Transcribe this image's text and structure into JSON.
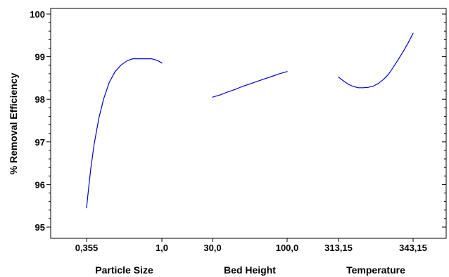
{
  "chart_data": {
    "type": "line",
    "title": "",
    "ylabel": "% Removal Efficiency",
    "ylim": [
      95,
      100
    ],
    "yticks": [
      95,
      96,
      97,
      98,
      99,
      100
    ],
    "ytick_labels": [
      "95",
      "96",
      "97",
      "98",
      "99",
      "100"
    ],
    "grid": false,
    "legend": "none",
    "line_color": "#0000cc",
    "panels": [
      {
        "xlabel": "Particle Size",
        "xlim": [
          0.355,
          1.0
        ],
        "xtick_labels": [
          "0,355",
          "1,0"
        ],
        "series": [
          {
            "x": [
              0.355,
              0.37,
              0.39,
              0.42,
              0.46,
              0.5,
              0.55,
              0.6,
              0.65,
              0.7,
              0.75,
              0.8,
              0.85,
              0.88,
              0.91,
              0.94,
              0.97,
              1.0
            ],
            "y": [
              95.45,
              95.85,
              96.35,
              96.95,
              97.55,
              98.0,
              98.4,
              98.65,
              98.8,
              98.9,
              98.95,
              98.95,
              98.95,
              98.95,
              98.95,
              98.93,
              98.9,
              98.85
            ]
          }
        ]
      },
      {
        "xlabel": "Bed Height",
        "xlim": [
          30.0,
          100.0
        ],
        "xtick_labels": [
          "30,0",
          "100,0"
        ],
        "series": [
          {
            "x": [
              30,
              37,
              44,
              51,
              58,
              65,
              72,
              79,
              86,
              93,
              100
            ],
            "y": [
              98.05,
              98.1,
              98.17,
              98.23,
              98.3,
              98.36,
              98.42,
              98.48,
              98.54,
              98.6,
              98.65
            ]
          }
        ]
      },
      {
        "xlabel": "Temperature",
        "xlim": [
          313.15,
          343.15
        ],
        "xtick_labels": [
          "313,15",
          "343,15"
        ],
        "series": [
          {
            "x": [
              313.15,
              315.15,
              317.15,
              319.15,
              321.15,
              323.15,
              325.15,
              327.15,
              329.15,
              331.15,
              333.15,
              335.15,
              337.15,
              339.15,
              341.15,
              343.15
            ],
            "y": [
              98.52,
              98.43,
              98.35,
              98.3,
              98.27,
              98.27,
              98.28,
              98.31,
              98.37,
              98.46,
              98.58,
              98.75,
              98.93,
              99.12,
              99.32,
              99.55
            ]
          }
        ]
      }
    ]
  }
}
